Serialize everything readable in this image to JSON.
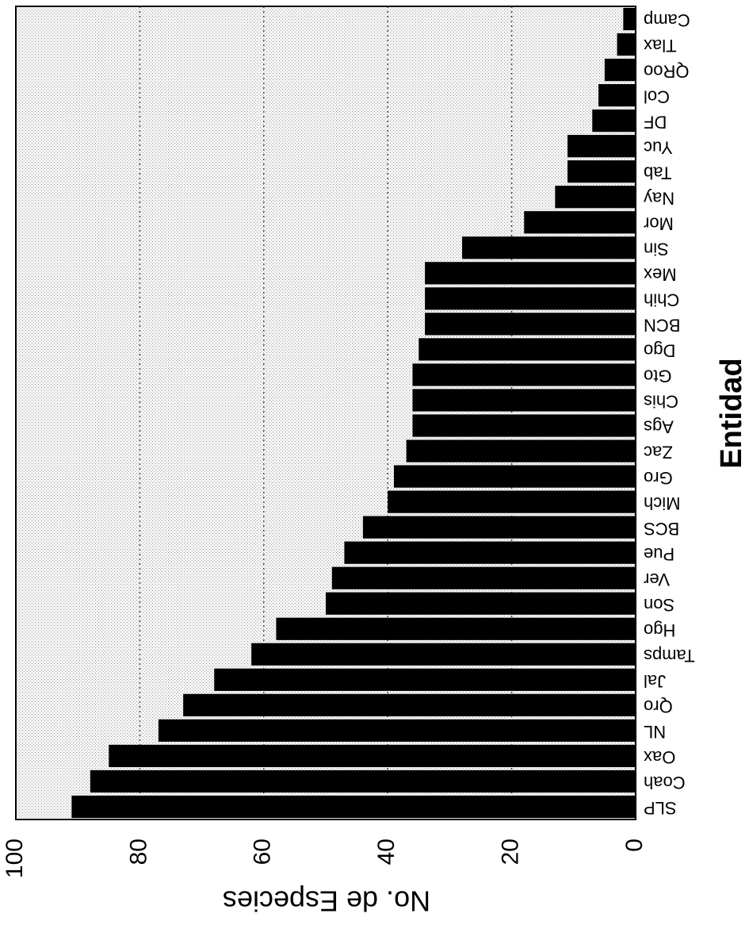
{
  "chart_data": {
    "type": "bar",
    "orientation": "horizontal",
    "xlabel": "Entidad",
    "ylabel": "No. de Especies",
    "ylim": [
      0,
      100
    ],
    "yticks": [
      0,
      20,
      40,
      60,
      80,
      100
    ],
    "grid": true,
    "categories": [
      "SLP",
      "Coah",
      "Oax",
      "NL",
      "Qro",
      "Jal",
      "Tamps",
      "Hgo",
      "Son",
      "Ver",
      "Pue",
      "BCS",
      "Mich",
      "Gro",
      "Zac",
      "Ags",
      "Chis",
      "Gto",
      "Dgo",
      "BCN",
      "Chih",
      "Mex",
      "Sin",
      "Mor",
      "Nay",
      "Tab",
      "Yuc",
      "DF",
      "Col",
      "QRoo",
      "Tlax",
      "Camp"
    ],
    "values": [
      91,
      88,
      85,
      77,
      73,
      68,
      62,
      58,
      50,
      49,
      47,
      44,
      40,
      39,
      37,
      36,
      36,
      36,
      35,
      34,
      34,
      34,
      28,
      18,
      13,
      11,
      11,
      7,
      6,
      5,
      3,
      2
    ],
    "colors": {
      "bar": "#000000",
      "plot_background": "#e6e6e6",
      "grid": "#444444"
    }
  }
}
